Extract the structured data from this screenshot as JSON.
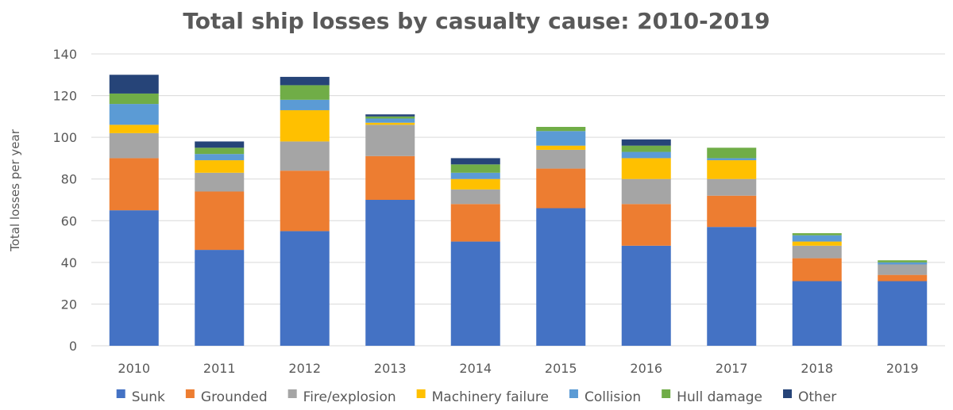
{
  "chart_data": {
    "type": "bar",
    "stacked": true,
    "title": "Total ship losses by casualty cause: 2010-2019",
    "xlabel": "",
    "ylabel": "Total losses per year",
    "ylim": [
      0,
      140
    ],
    "yticks": [
      0,
      20,
      40,
      60,
      80,
      100,
      120,
      140
    ],
    "grid": true,
    "legend_position": "bottom",
    "categories": [
      "2010",
      "2011",
      "2012",
      "2013",
      "2014",
      "2015",
      "2016",
      "2017",
      "2018",
      "2019"
    ],
    "series": [
      {
        "name": "Sunk",
        "color": "#4472C4",
        "values": [
          65,
          46,
          55,
          70,
          50,
          66,
          48,
          57,
          31,
          31
        ]
      },
      {
        "name": "Grounded",
        "color": "#ED7D31",
        "values": [
          25,
          28,
          29,
          21,
          18,
          19,
          20,
          15,
          11,
          3
        ]
      },
      {
        "name": "Fire/explosion",
        "color": "#A5A5A5",
        "values": [
          12,
          9,
          14,
          15,
          7,
          9,
          12,
          8,
          6,
          5
        ]
      },
      {
        "name": "Machinery failure",
        "color": "#FFC000",
        "values": [
          4,
          6,
          15,
          1,
          5,
          2,
          10,
          9,
          2,
          0
        ]
      },
      {
        "name": "Collision",
        "color": "#5B9BD5",
        "values": [
          10,
          3,
          5,
          2,
          3,
          7,
          3,
          1,
          3,
          1
        ]
      },
      {
        "name": "Hull damage",
        "color": "#70AD47",
        "values": [
          5,
          3,
          7,
          1,
          4,
          2,
          3,
          5,
          1,
          1
        ]
      },
      {
        "name": "Other",
        "color": "#264478",
        "values": [
          9,
          3,
          4,
          1,
          3,
          0,
          3,
          0,
          0,
          0
        ]
      }
    ]
  }
}
